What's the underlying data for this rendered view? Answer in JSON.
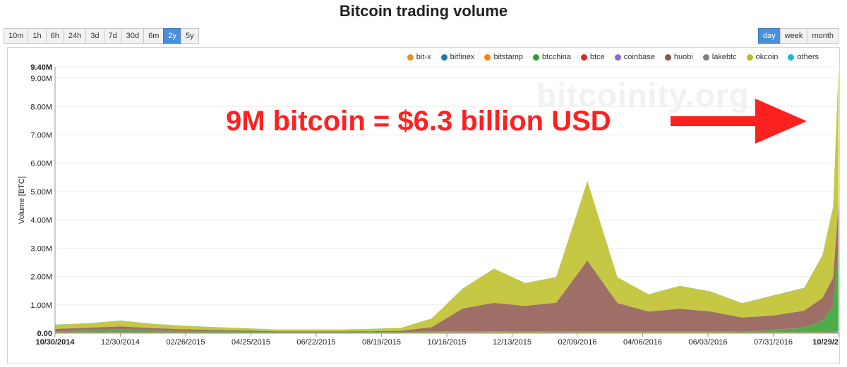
{
  "title": "Bitcoin trading volume",
  "range_buttons": [
    {
      "label": "10m",
      "active": false
    },
    {
      "label": "1h",
      "active": false
    },
    {
      "label": "6h",
      "active": false
    },
    {
      "label": "24h",
      "active": false
    },
    {
      "label": "3d",
      "active": false
    },
    {
      "label": "7d",
      "active": false
    },
    {
      "label": "30d",
      "active": false
    },
    {
      "label": "6m",
      "active": false
    },
    {
      "label": "2y",
      "active": true
    },
    {
      "label": "5y",
      "active": false
    }
  ],
  "period_buttons": [
    {
      "label": "day",
      "active": true
    },
    {
      "label": "week",
      "active": false
    },
    {
      "label": "month",
      "active": false
    }
  ],
  "watermark": "bitcoinity.org",
  "annotation": "9M bitcoin = $6.3 billion USD",
  "colors": {
    "accent": "#4a8fd8",
    "annotation": "#ff2020"
  },
  "chart_data": {
    "type": "area",
    "stacked": true,
    "ylabel": "Volume [BTC]",
    "ylim": [
      0,
      9400000
    ],
    "y_ticks": [
      "0.00",
      "1.00M",
      "2.00M",
      "3.00M",
      "4.00M",
      "5.00M",
      "6.00M",
      "7.00M",
      "8.00M",
      "9.00M",
      "9.40M"
    ],
    "y_tick_values": [
      0,
      1000000,
      2000000,
      3000000,
      4000000,
      5000000,
      6000000,
      7000000,
      8000000,
      9000000,
      9400000
    ],
    "x_ticks": [
      "10/30/2014",
      "12/30/2014",
      "02/26/2015",
      "04/25/2015",
      "06/22/2015",
      "08/19/2015",
      "10/16/2015",
      "12/13/2015",
      "02/09/2016",
      "04/06/2016",
      "06/03/2016",
      "07/31/2016",
      "10/29/2"
    ],
    "x_ticks_bold": [
      true,
      false,
      false,
      false,
      false,
      false,
      false,
      false,
      false,
      false,
      false,
      false,
      true
    ],
    "x": [
      "2014-10-30",
      "2014-11-29",
      "2014-12-30",
      "2015-01-28",
      "2015-02-26",
      "2015-03-28",
      "2015-04-25",
      "2015-05-24",
      "2015-06-22",
      "2015-07-21",
      "2015-08-19",
      "2015-09-17",
      "2015-10-16",
      "2015-11-14",
      "2015-12-13",
      "2016-01-11",
      "2016-02-09",
      "2016-03-09",
      "2016-04-06",
      "2016-05-05",
      "2016-06-03",
      "2016-07-02",
      "2016-07-31",
      "2016-08-29",
      "2016-09-27",
      "2016-10-14",
      "2016-10-24",
      "2016-10-29"
    ],
    "series": [
      {
        "name": "bit-x",
        "color": "#f08a30",
        "values": [
          0,
          0,
          0,
          0,
          0,
          0,
          0,
          0,
          0,
          0,
          0,
          0,
          0,
          0,
          0,
          0,
          0,
          0,
          0,
          0,
          0,
          0,
          0,
          0,
          0,
          0,
          0,
          0
        ]
      },
      {
        "name": "bitfinex",
        "color": "#1f77b4",
        "values": [
          15000,
          20000,
          30000,
          20000,
          15000,
          10000,
          10000,
          8000,
          8000,
          8000,
          10000,
          10000,
          20000,
          25000,
          20000,
          20000,
          25000,
          20000,
          20000,
          20000,
          20000,
          20000,
          15000,
          20000,
          20000,
          20000,
          30000,
          40000
        ]
      },
      {
        "name": "bitstamp",
        "color": "#ff7f0e",
        "values": [
          10000,
          15000,
          20000,
          15000,
          10000,
          8000,
          8000,
          6000,
          6000,
          6000,
          8000,
          8000,
          15000,
          20000,
          20000,
          15000,
          20000,
          15000,
          15000,
          15000,
          15000,
          15000,
          10000,
          15000,
          15000,
          15000,
          20000,
          25000
        ]
      },
      {
        "name": "btcchina",
        "color": "#2ca02c",
        "values": [
          40000,
          60000,
          80000,
          60000,
          50000,
          40000,
          30000,
          20000,
          20000,
          20000,
          20000,
          20000,
          20000,
          20000,
          20000,
          20000,
          20000,
          20000,
          20000,
          20000,
          20000,
          20000,
          20000,
          80000,
          150000,
          400000,
          900000,
          3000000
        ]
      },
      {
        "name": "btce",
        "color": "#d62728",
        "values": [
          5000,
          5000,
          8000,
          5000,
          5000,
          4000,
          4000,
          3000,
          3000,
          3000,
          3000,
          3000,
          5000,
          6000,
          6000,
          5000,
          5000,
          5000,
          5000,
          5000,
          5000,
          5000,
          4000,
          5000,
          5000,
          5000,
          6000,
          8000
        ]
      },
      {
        "name": "coinbase",
        "color": "#9467bd",
        "values": [
          2000,
          2000,
          3000,
          2000,
          2000,
          2000,
          2000,
          2000,
          2000,
          2000,
          2000,
          2000,
          3000,
          3000,
          3000,
          3000,
          3000,
          3000,
          3000,
          3000,
          3000,
          3000,
          3000,
          3000,
          3000,
          3000,
          4000,
          5000
        ]
      },
      {
        "name": "huobi",
        "color": "#8c564b",
        "values": [
          80000,
          90000,
          100000,
          80000,
          60000,
          50000,
          40000,
          30000,
          30000,
          30000,
          30000,
          40000,
          150000,
          800000,
          1000000,
          900000,
          1000000,
          2500000,
          1000000,
          700000,
          800000,
          700000,
          500000,
          500000,
          600000,
          800000,
          1000000,
          1500000
        ]
      },
      {
        "name": "lakebtc",
        "color": "#7f7f7f",
        "values": [
          0,
          0,
          0,
          0,
          0,
          0,
          0,
          0,
          0,
          0,
          0,
          0,
          5000,
          5000,
          5000,
          5000,
          5000,
          5000,
          5000,
          5000,
          5000,
          5000,
          5000,
          5000,
          5000,
          5000,
          5000,
          5000
        ]
      },
      {
        "name": "okcoin",
        "color": "#bcbd22",
        "values": [
          150000,
          150000,
          200000,
          150000,
          120000,
          100000,
          80000,
          60000,
          60000,
          60000,
          80000,
          100000,
          300000,
          700000,
          1200000,
          800000,
          900000,
          2800000,
          900000,
          600000,
          800000,
          700000,
          500000,
          700000,
          800000,
          1500000,
          2500000,
          4800000
        ]
      },
      {
        "name": "others",
        "color": "#17becf",
        "values": [
          5000,
          5000,
          8000,
          5000,
          5000,
          4000,
          4000,
          3000,
          3000,
          3000,
          3000,
          3000,
          5000,
          6000,
          6000,
          5000,
          5000,
          5000,
          5000,
          5000,
          5000,
          5000,
          4000,
          5000,
          5000,
          5000,
          6000,
          8000
        ]
      }
    ]
  }
}
